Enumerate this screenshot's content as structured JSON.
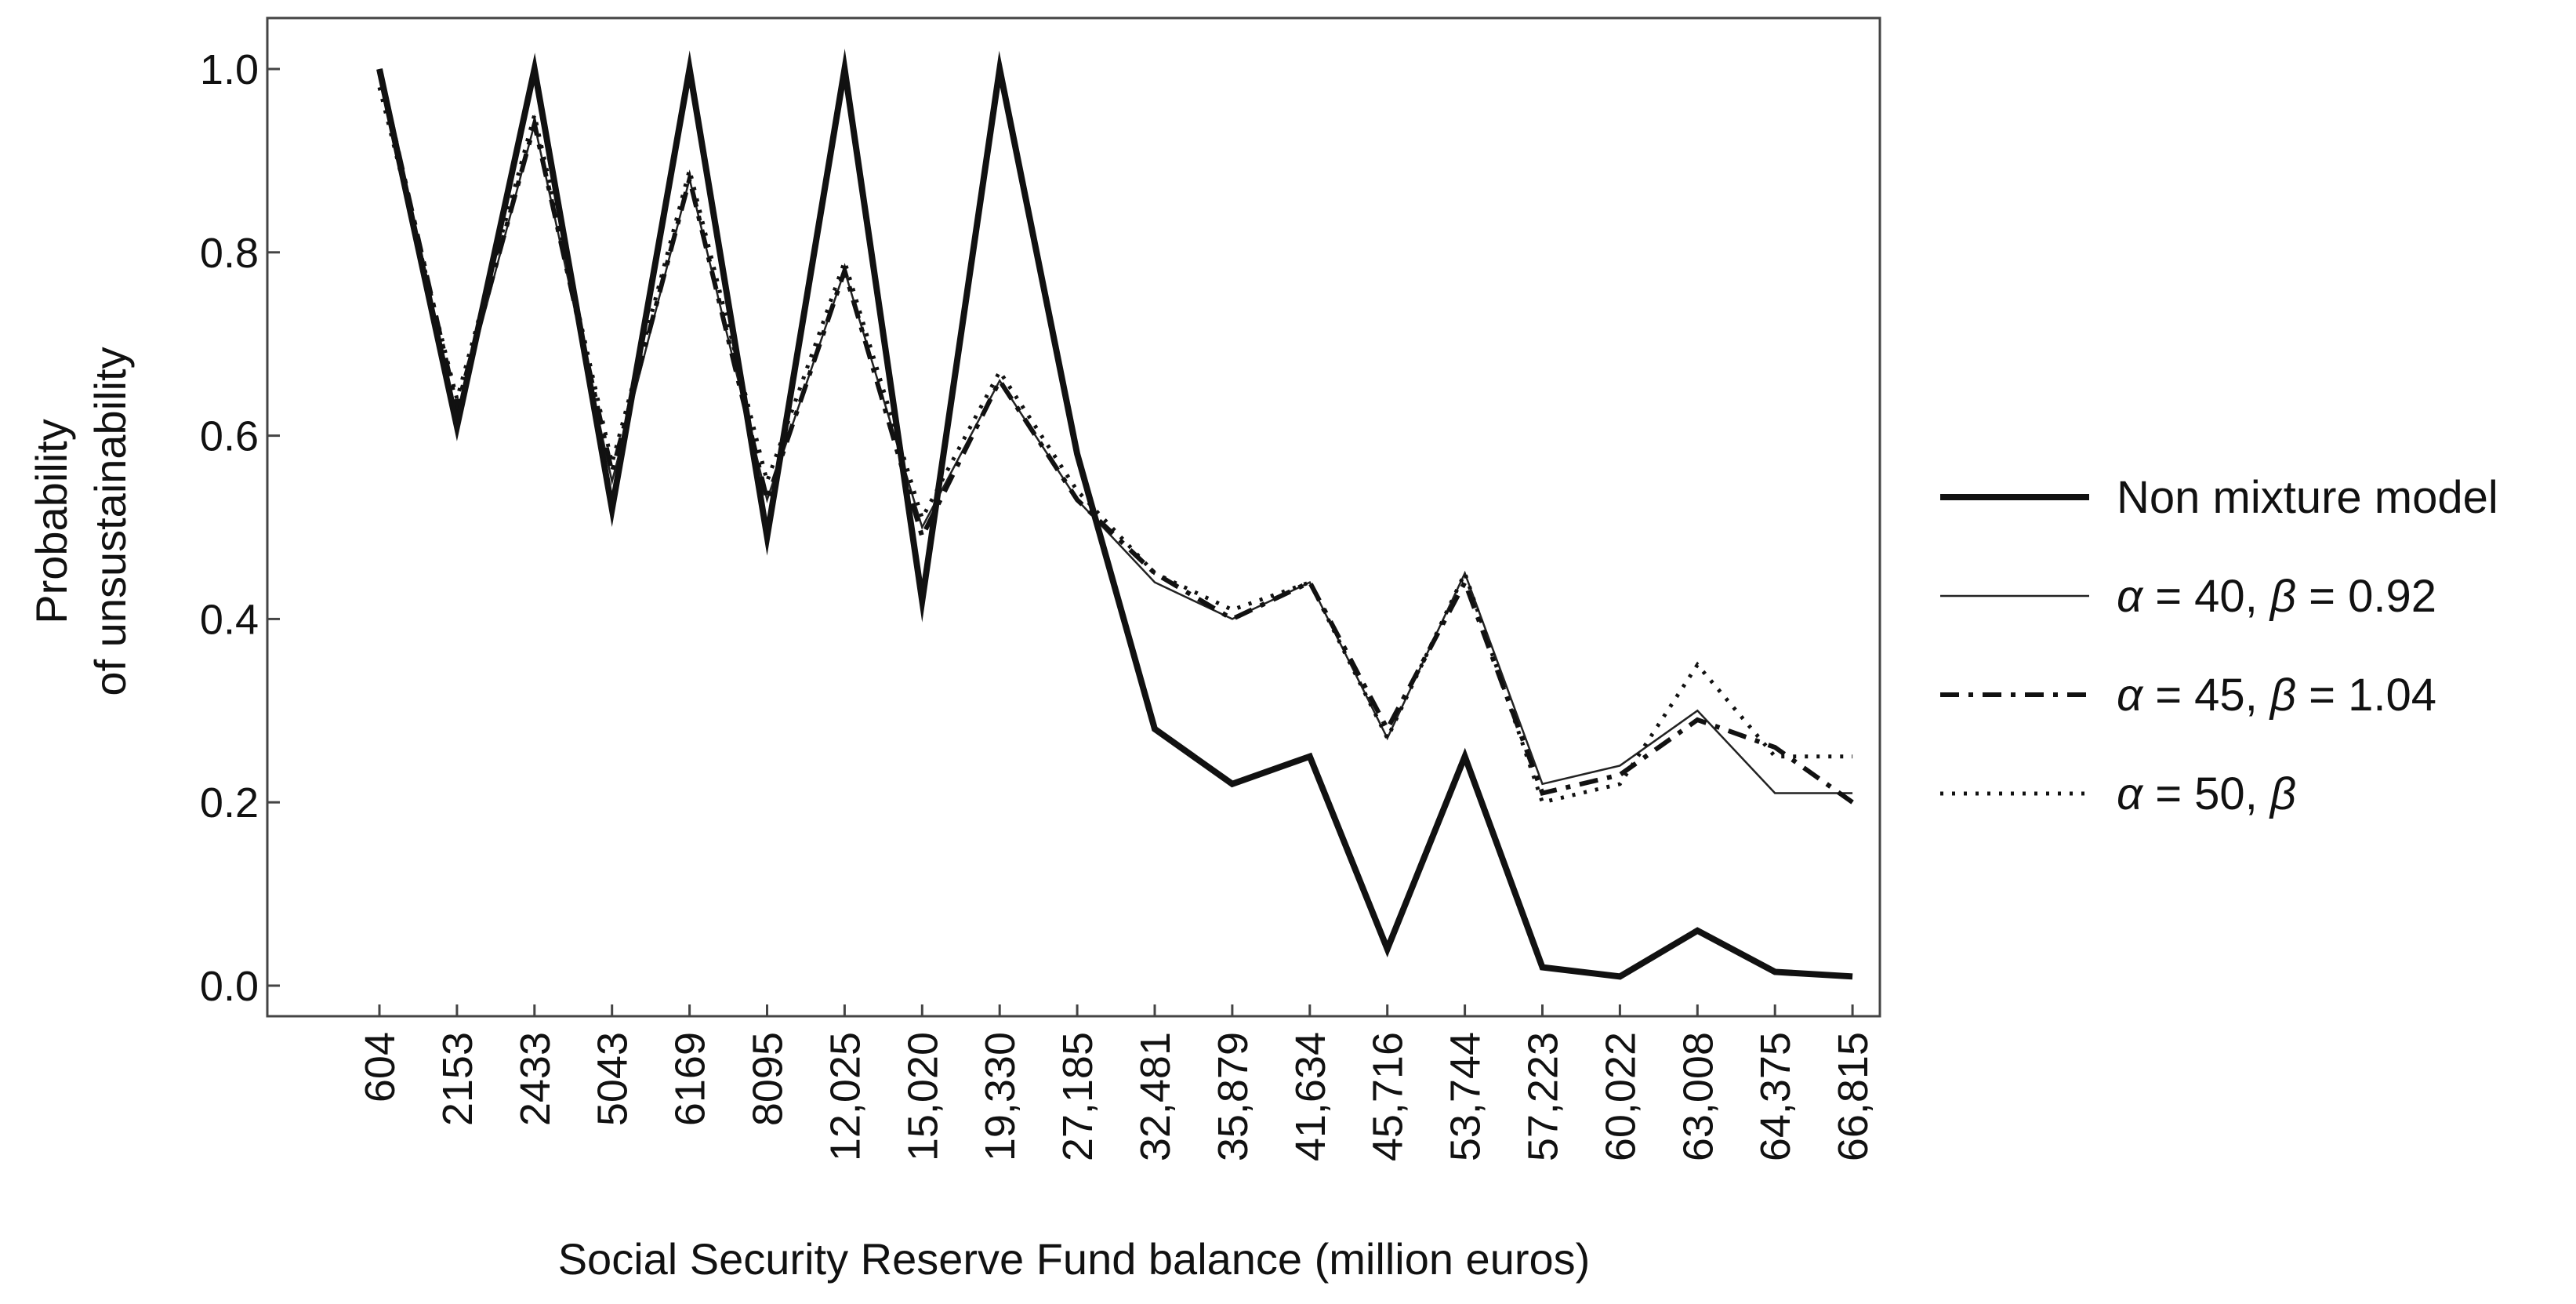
{
  "chart_data": {
    "type": "line",
    "title": "",
    "xlabel": "Social Security Reserve Fund balance (million euros)",
    "ylabel": [
      "Probability",
      "of unsustainability"
    ],
    "ylim": [
      0,
      1
    ],
    "yticks": [
      "0.0",
      "0.2",
      "0.4",
      "0.6",
      "0.8",
      "1.0"
    ],
    "grid": false,
    "legend_position": "right",
    "categories": [
      "604",
      "2153",
      "2433",
      "5043",
      "6169",
      "8095",
      "12,025",
      "15,020",
      "19,330",
      "27,185",
      "32,481",
      "35,879",
      "41,634",
      "45,716",
      "53,744",
      "57,223",
      "60,022",
      "63,008",
      "64,375",
      "66,815"
    ],
    "series": [
      {
        "name": "Non mixture model",
        "legend": {
          "a": "",
          "av": "Non mixture model",
          "b": "",
          "bv": ""
        },
        "style": "solid-thick",
        "values": [
          1.0,
          0.61,
          1.0,
          0.52,
          1.0,
          0.49,
          1.0,
          0.42,
          1.0,
          0.58,
          0.28,
          0.22,
          0.25,
          0.04,
          0.25,
          0.02,
          0.01,
          0.06,
          0.015,
          0.01
        ]
      },
      {
        "name": "α = 40, β = 0.92",
        "legend": {
          "a": "α",
          "av": " = 40, ",
          "b": "β",
          "bv": " = 0.92"
        },
        "style": "solid-thin",
        "values": [
          1.0,
          0.62,
          0.94,
          0.55,
          0.88,
          0.53,
          0.78,
          0.5,
          0.66,
          0.53,
          0.44,
          0.4,
          0.44,
          0.27,
          0.45,
          0.22,
          0.24,
          0.3,
          0.21,
          0.21
        ]
      },
      {
        "name": "α = 45, β = 1.04",
        "legend": {
          "a": "α",
          "av": " = 45, ",
          "b": "β",
          "bv": " = 1.04"
        },
        "style": "dash-dot",
        "values": [
          1.0,
          0.63,
          0.94,
          0.56,
          0.88,
          0.53,
          0.78,
          0.49,
          0.66,
          0.53,
          0.45,
          0.4,
          0.44,
          0.28,
          0.44,
          0.21,
          0.23,
          0.29,
          0.26,
          0.2
        ]
      },
      {
        "name": "α = 50, β",
        "legend": {
          "a": "α",
          "av": " = 50, ",
          "b": "β",
          "bv": ""
        },
        "style": "dotted",
        "values": [
          0.98,
          0.64,
          0.95,
          0.57,
          0.89,
          0.55,
          0.79,
          0.51,
          0.67,
          0.54,
          0.45,
          0.41,
          0.44,
          0.27,
          0.45,
          0.2,
          0.22,
          0.35,
          0.25,
          0.25
        ]
      }
    ]
  }
}
